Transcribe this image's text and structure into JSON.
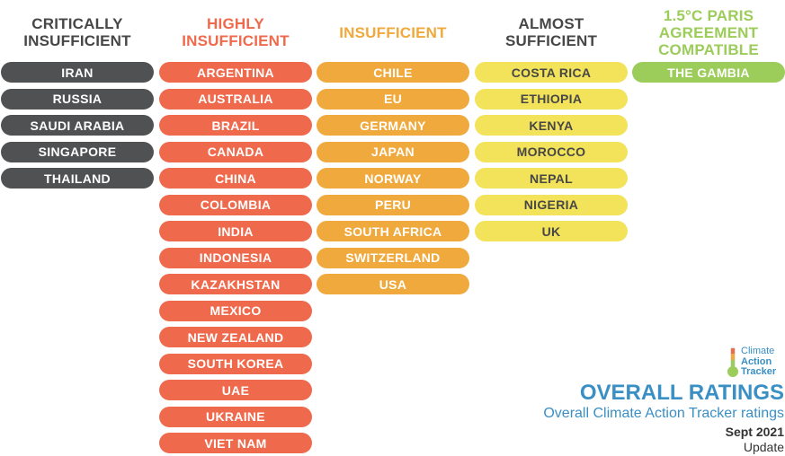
{
  "columns": [
    {
      "id": "critically-insufficient",
      "heading": [
        "CRITICALLY",
        "INSUFFICIENT"
      ],
      "heading_color": "#474747",
      "pill_color": "#4f5152",
      "text_color": "#ffffff",
      "countries": [
        "IRAN",
        "RUSSIA",
        "SAUDI ARABIA",
        "SINGAPORE",
        "THAILAND"
      ]
    },
    {
      "id": "highly-insufficient",
      "heading": [
        "HIGHLY",
        "INSUFFICIENT"
      ],
      "heading_color": "#ef6a4c",
      "pill_color": "#ef6a4c",
      "text_color": "#ffffff",
      "countries": [
        "ARGENTINA",
        "AUSTRALIA",
        "BRAZIL",
        "CANADA",
        "CHINA",
        "COLOMBIA",
        "INDIA",
        "INDONESIA",
        "KAZAKHSTAN",
        "MEXICO",
        "NEW ZEALAND",
        "SOUTH KOREA",
        "UAE",
        "UKRAINE",
        "VIET NAM"
      ]
    },
    {
      "id": "insufficient",
      "heading": [
        "INSUFFICIENT"
      ],
      "heading_color": "#f0a93c",
      "pill_color": "#f0a93c",
      "text_color": "#ffffff",
      "countries": [
        "CHILE",
        "EU",
        "GERMANY",
        "JAPAN",
        "NORWAY",
        "PERU",
        "SOUTH AFRICA",
        "SWITZERLAND",
        "USA"
      ]
    },
    {
      "id": "almost-sufficient",
      "heading": [
        "ALMOST",
        "SUFFICIENT"
      ],
      "heading_color": "#474747",
      "pill_color": "#f2e35a",
      "text_color": "#474747",
      "countries": [
        "COSTA RICA",
        "ETHIOPIA",
        "KENYA",
        "MOROCCO",
        "NEPAL",
        "NIGERIA",
        "UK"
      ]
    },
    {
      "id": "paris-compatible",
      "heading": [
        "1.5°C PARIS",
        "AGREEMENT",
        "COMPATIBLE"
      ],
      "heading_color": "#9ccc5a",
      "pill_color": "#9ccc5a",
      "text_color": "#ffffff",
      "countries": [
        "THE GAMBIA"
      ]
    }
  ],
  "logo": {
    "line1": "Climate",
    "line2": "Action",
    "line3": "Tracker",
    "colors": [
      "#ef6a4c",
      "#f0a93c",
      "#9ccc5a"
    ]
  },
  "footer": {
    "title": "OVERALL RATINGS",
    "subtitle": "Overall Climate Action Tracker ratings",
    "date": "Sept 2021",
    "update": "Update"
  }
}
